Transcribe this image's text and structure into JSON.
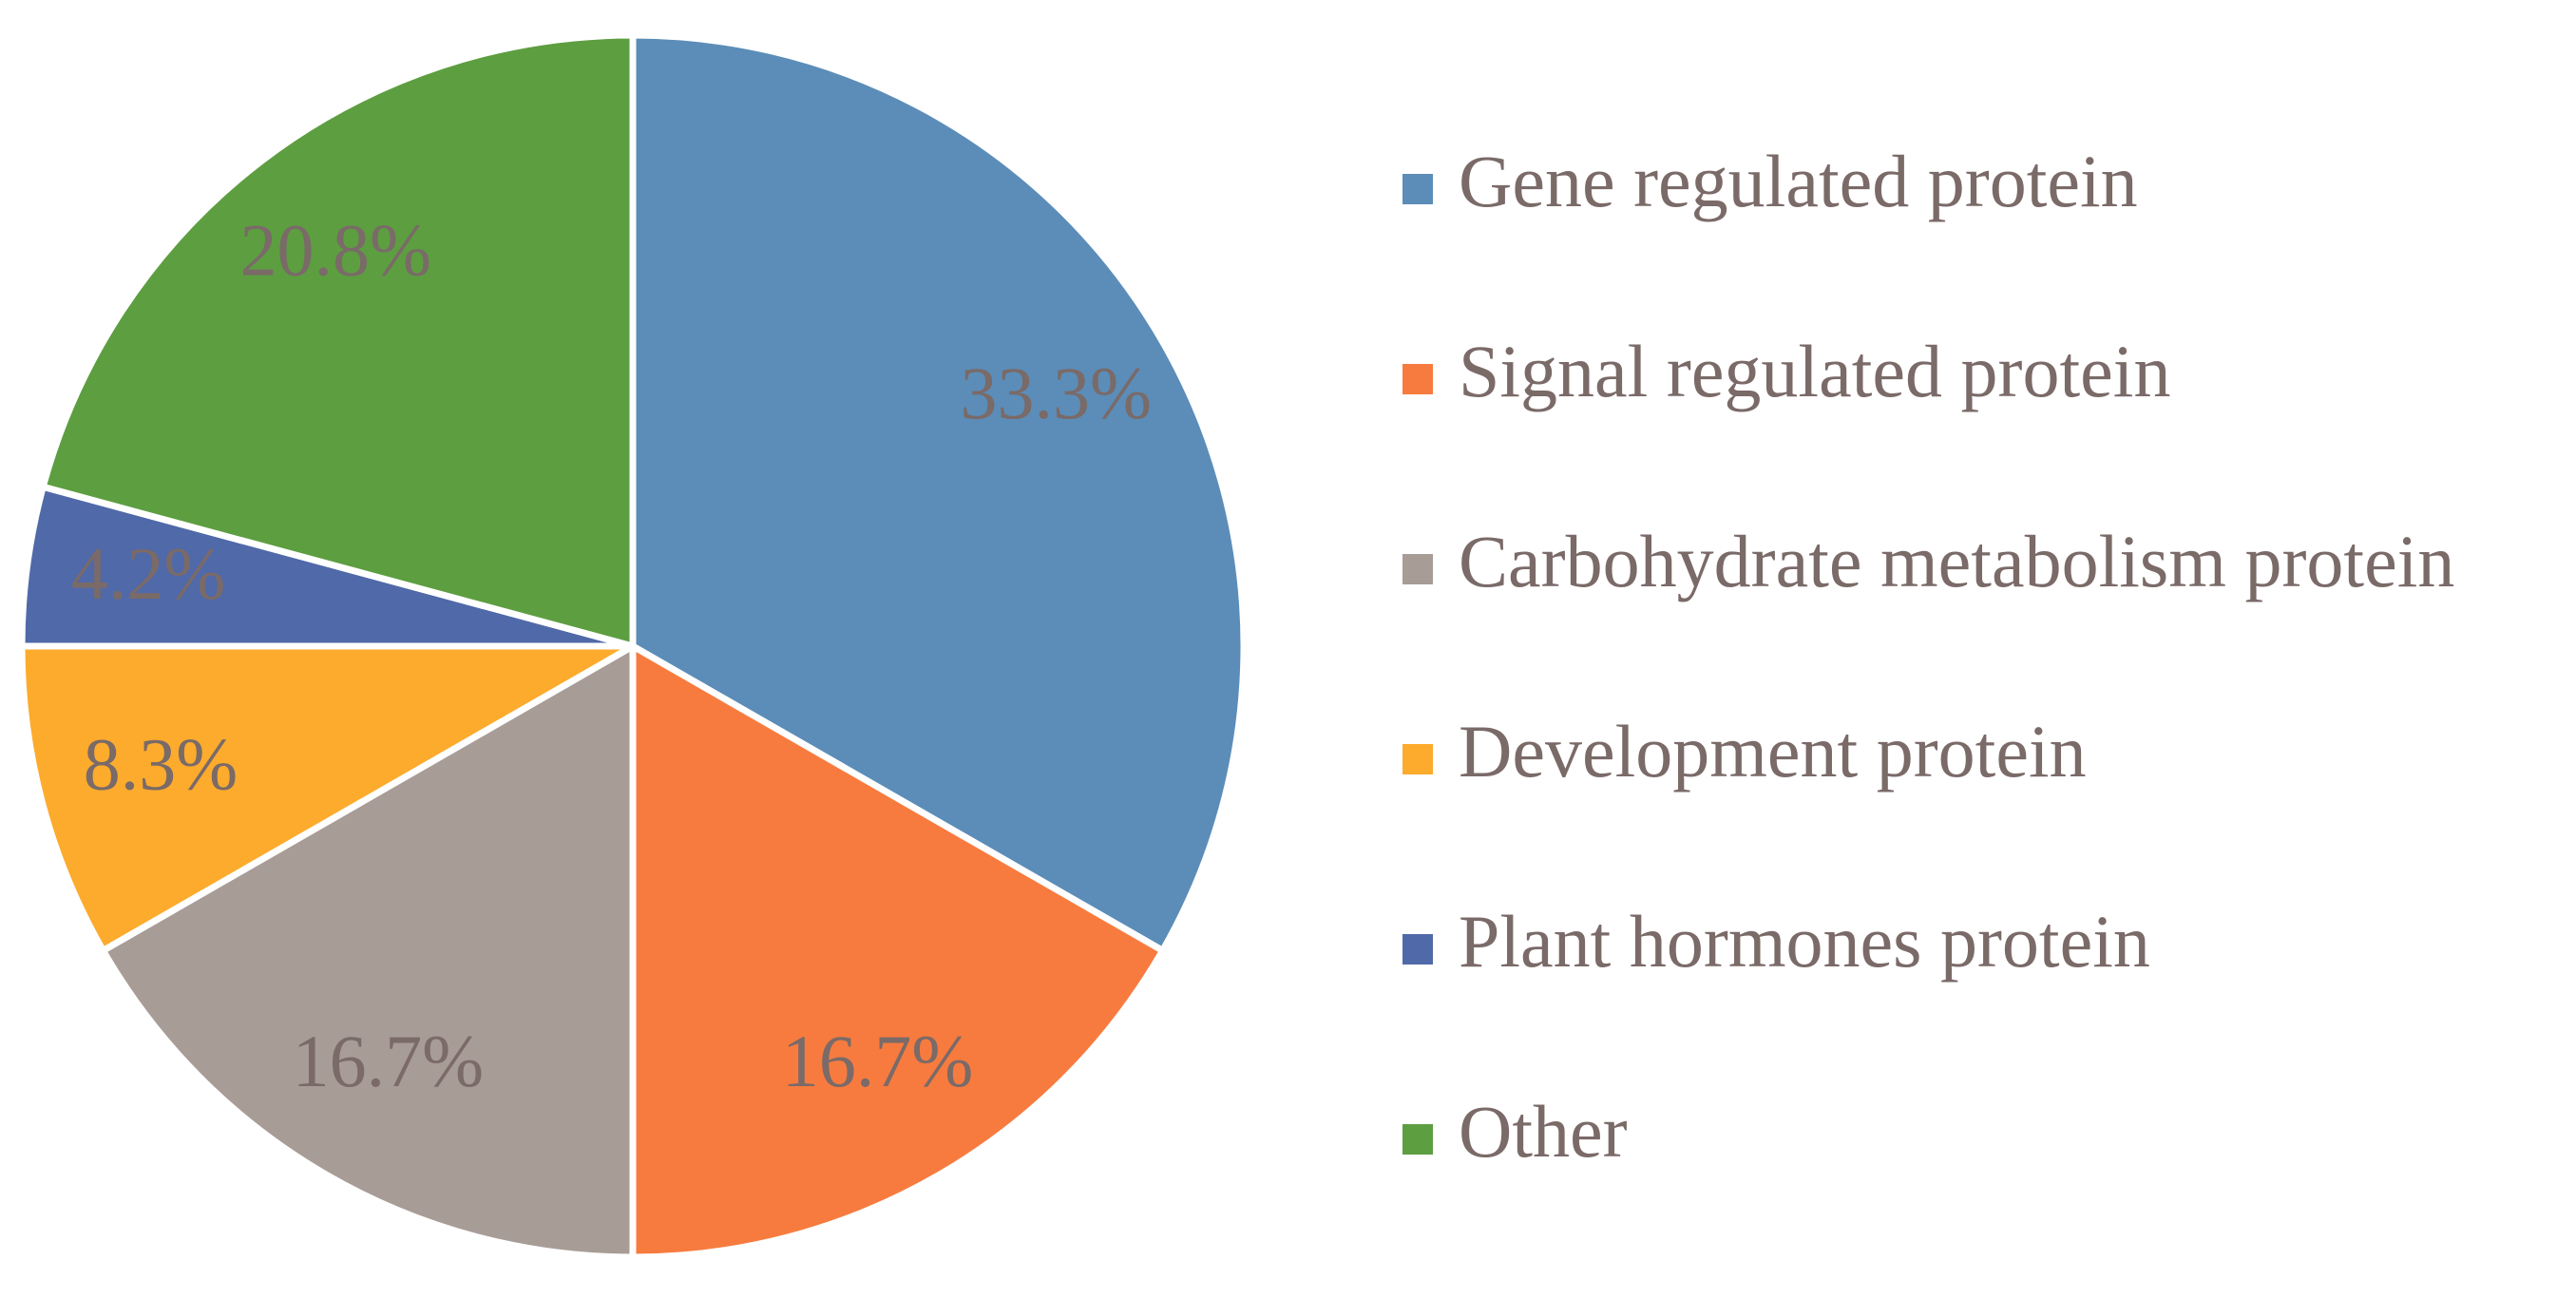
{
  "chart_data": {
    "type": "pie",
    "categories": [
      "Gene regulated protein",
      "Signal regulated protein",
      "Carbohydrate metabolism protein",
      "Development protein",
      "Plant hormones protein",
      "Other"
    ],
    "values": [
      33.3,
      16.7,
      16.7,
      8.3,
      4.2,
      20.8
    ],
    "value_labels": [
      "33.3%",
      "16.7%",
      "16.7%",
      "8.3%",
      "4.2%",
      "20.8%"
    ],
    "colors": [
      "#5b8db8",
      "#f77b3f",
      "#a89c97",
      "#fcab2d",
      "#5069a8",
      "#5d9e41"
    ],
    "legend": "right"
  }
}
